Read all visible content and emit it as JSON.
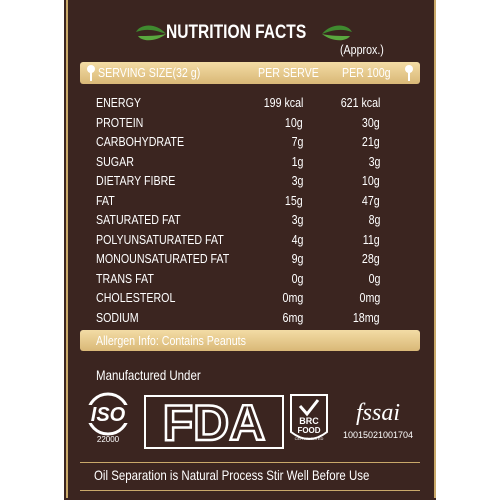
{
  "title": "NUTRITION FACTS",
  "approx": "(Approx.)",
  "header": [
    "SERVING SIZE(32 g)",
    "PER SERVE",
    "PER 100g"
  ],
  "rows": [
    [
      "ENERGY",
      "199 kcal",
      "621 kcal"
    ],
    [
      "PROTEIN",
      "10g",
      "30g"
    ],
    [
      "CARBOHYDRATE",
      "7g",
      "21g"
    ],
    [
      "SUGAR",
      "1g",
      "3g"
    ],
    [
      "DIETARY FIBRE",
      "3g",
      "10g"
    ],
    [
      "FAT",
      "15g",
      "47g"
    ],
    [
      "SATURATED FAT",
      "3g",
      "8g"
    ],
    [
      "POLYUNSATURATED FAT",
      "4g",
      "11g"
    ],
    [
      "MONOUNSATURATED FAT",
      "9g",
      "28g"
    ],
    [
      "TRANS FAT",
      "0g",
      "0g"
    ],
    [
      "CHOLESTEROL",
      "0mg",
      "0mg"
    ],
    [
      "SODIUM",
      "6mg",
      "18mg"
    ]
  ],
  "allergen": "Allergen Info: Contains Peanuts",
  "manufactured": "Manufactured Under",
  "logos": {
    "iso": "ISO",
    "iso_number": "22000",
    "fda": "FDA",
    "brc": "BRC",
    "brc_food": "FOOD",
    "brc_cert": "CERTIFICATED",
    "fssai": "fssai",
    "fssai_number": "10015021001704"
  },
  "footer": "Oil Separation is Natural Process Stir Well Before Use"
}
